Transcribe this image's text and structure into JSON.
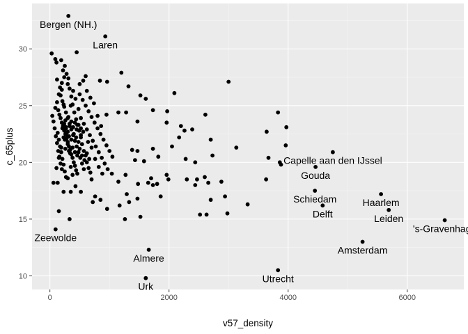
{
  "chart_data": {
    "type": "scatter",
    "title": "",
    "xlabel": "v57_density",
    "ylabel": "c_65plus",
    "xlim": [
      -300,
      6950
    ],
    "ylim": [
      8.8,
      34.0
    ],
    "xticks": [
      0,
      2000,
      4000,
      6000
    ],
    "xtick_labels": [
      "0",
      "2000",
      "4000",
      "6000"
    ],
    "yticks": [
      10,
      15,
      20,
      25,
      30
    ],
    "ytick_labels": [
      "10",
      "15",
      "20",
      "25",
      "30"
    ],
    "grid": true,
    "colors": {
      "panel": "#ebebeb",
      "grid_major": "#ffffff",
      "grid_minor": "#f5f5f5",
      "point": "#000000",
      "tick": "#333333"
    },
    "labels": [
      {
        "text": "Bergen (NH.)",
        "x": 310,
        "y": 32.9
      },
      {
        "text": "Laren",
        "x": 930,
        "y": 31.1
      },
      {
        "text": "Zeewolde",
        "x": 95,
        "y": 14.1
      },
      {
        "text": "Almere",
        "x": 1660,
        "y": 12.3
      },
      {
        "text": "Urk",
        "x": 1610,
        "y": 9.8
      },
      {
        "text": "Utrecht",
        "x": 3830,
        "y": 10.5
      },
      {
        "text": "Amsterdam",
        "x": 5250,
        "y": 13.0
      },
      {
        "text": "Capelle aan den IJssel",
        "x": 4750,
        "y": 20.9
      },
      {
        "text": "Gouda",
        "x": 4460,
        "y": 19.6
      },
      {
        "text": "Schiedam",
        "x": 4450,
        "y": 17.5
      },
      {
        "text": "Delft",
        "x": 4580,
        "y": 16.2
      },
      {
        "text": "Haarlem",
        "x": 5560,
        "y": 17.2
      },
      {
        "text": "Leiden",
        "x": 5690,
        "y": 15.8
      },
      {
        "text": "'s-Gravenhage",
        "x": 6630,
        "y": 14.9
      }
    ],
    "points": [
      [
        310,
        32.9
      ],
      [
        930,
        31.1
      ],
      [
        95,
        14.1
      ],
      [
        1660,
        12.3
      ],
      [
        1610,
        9.8
      ],
      [
        3830,
        10.5
      ],
      [
        5250,
        13.0
      ],
      [
        4750,
        20.9
      ],
      [
        4460,
        19.6
      ],
      [
        4450,
        17.5
      ],
      [
        4580,
        16.2
      ],
      [
        5560,
        17.2
      ],
      [
        5690,
        15.8
      ],
      [
        6630,
        14.9
      ],
      [
        30,
        29.6
      ],
      [
        90,
        29.1
      ],
      [
        110,
        28.8
      ],
      [
        190,
        29.0
      ],
      [
        450,
        29.7
      ],
      [
        1200,
        27.9
      ],
      [
        120,
        27.3
      ],
      [
        240,
        27.5
      ],
      [
        600,
        27.6
      ],
      [
        840,
        27.2
      ],
      [
        960,
        27.1
      ],
      [
        1320,
        26.7
      ],
      [
        300,
        26.9
      ],
      [
        500,
        26.9
      ],
      [
        3000,
        27.1
      ],
      [
        2090,
        26.1
      ],
      [
        1520,
        25.9
      ],
      [
        1610,
        25.6
      ],
      [
        1730,
        24.6
      ],
      [
        950,
        24.2
      ],
      [
        1150,
        24.4
      ],
      [
        1280,
        24.4
      ],
      [
        1970,
        24.5
      ],
      [
        2610,
        24.2
      ],
      [
        3830,
        24.4
      ],
      [
        3970,
        23.1
      ],
      [
        2200,
        23.2
      ],
      [
        2390,
        22.9
      ],
      [
        2260,
        22.8
      ],
      [
        1960,
        23.5
      ],
      [
        1470,
        23.6
      ],
      [
        3640,
        22.7
      ],
      [
        2700,
        22.0
      ],
      [
        2170,
        22.2
      ],
      [
        3960,
        21.5
      ],
      [
        3130,
        21.3
      ],
      [
        2050,
        21.4
      ],
      [
        1730,
        21.2
      ],
      [
        1470,
        21.0
      ],
      [
        1380,
        21.1
      ],
      [
        1430,
        20.2
      ],
      [
        1580,
        20.1
      ],
      [
        1820,
        20.5
      ],
      [
        2280,
        20.3
      ],
      [
        2440,
        20.0
      ],
      [
        2730,
        20.6
      ],
      [
        3670,
        20.4
      ],
      [
        3860,
        20.0
      ],
      [
        3880,
        19.8
      ],
      [
        3630,
        18.5
      ],
      [
        2600,
        18.7
      ],
      [
        2470,
        18.5
      ],
      [
        2300,
        18.5
      ],
      [
        1990,
        18.5
      ],
      [
        1960,
        18.9
      ],
      [
        2880,
        18.3
      ],
      [
        2660,
        18.2
      ],
      [
        2440,
        18.0
      ],
      [
        1800,
        18.1
      ],
      [
        1700,
        18.6
      ],
      [
        1650,
        18.2
      ],
      [
        1480,
        18.1
      ],
      [
        1270,
        18.9
      ],
      [
        1150,
        18.3
      ],
      [
        1040,
        19.0
      ],
      [
        1290,
        17.2
      ],
      [
        1470,
        16.8
      ],
      [
        1860,
        17.0
      ],
      [
        1730,
        18.0
      ],
      [
        2940,
        17.0
      ],
      [
        2700,
        16.7
      ],
      [
        3320,
        16.3
      ],
      [
        2520,
        15.4
      ],
      [
        2630,
        15.4
      ],
      [
        2980,
        15.5
      ],
      [
        1520,
        15.2
      ],
      [
        1260,
        15.0
      ],
      [
        1170,
        16.2
      ],
      [
        960,
        15.9
      ],
      [
        1330,
        16.5
      ],
      [
        850,
        16.7
      ],
      [
        760,
        17.0
      ],
      [
        720,
        16.5
      ],
      [
        520,
        17.4
      ],
      [
        330,
        15.0
      ],
      [
        150,
        15.7
      ],
      [
        60,
        18.2
      ],
      [
        130,
        18.2
      ],
      [
        300,
        18.6
      ],
      [
        430,
        17.9
      ],
      [
        230,
        17.4
      ],
      [
        350,
        17.4
      ],
      [
        40,
        24.1
      ],
      [
        60,
        23.6
      ],
      [
        80,
        23.0
      ],
      [
        100,
        22.3
      ],
      [
        120,
        21.7
      ],
      [
        140,
        21.0
      ],
      [
        160,
        20.5
      ],
      [
        180,
        19.9
      ],
      [
        200,
        19.4
      ],
      [
        90,
        24.8
      ],
      [
        120,
        25.3
      ],
      [
        150,
        26.0
      ],
      [
        170,
        26.6
      ],
      [
        200,
        27.0
      ],
      [
        220,
        28.1
      ],
      [
        250,
        28.5
      ],
      [
        280,
        27.8
      ],
      [
        310,
        27.4
      ],
      [
        330,
        26.5
      ],
      [
        360,
        25.8
      ],
      [
        380,
        25.1
      ],
      [
        410,
        24.4
      ],
      [
        440,
        23.8
      ],
      [
        460,
        23.3
      ],
      [
        490,
        22.8
      ],
      [
        520,
        22.2
      ],
      [
        540,
        21.6
      ],
      [
        570,
        21.0
      ],
      [
        600,
        20.6
      ],
      [
        620,
        20.0
      ],
      [
        650,
        19.5
      ],
      [
        680,
        19.1
      ],
      [
        700,
        18.5
      ],
      [
        140,
        24.6
      ],
      [
        160,
        24.2
      ],
      [
        180,
        23.9
      ],
      [
        200,
        23.5
      ],
      [
        220,
        23.2
      ],
      [
        240,
        22.8
      ],
      [
        260,
        22.5
      ],
      [
        280,
        22.1
      ],
      [
        300,
        21.8
      ],
      [
        320,
        21.4
      ],
      [
        340,
        21.1
      ],
      [
        360,
        20.7
      ],
      [
        380,
        20.4
      ],
      [
        400,
        20.0
      ],
      [
        420,
        19.7
      ],
      [
        440,
        19.3
      ],
      [
        460,
        19.0
      ],
      [
        130,
        22.6
      ],
      [
        150,
        22.0
      ],
      [
        170,
        21.4
      ],
      [
        190,
        20.9
      ],
      [
        210,
        20.3
      ],
      [
        230,
        19.8
      ],
      [
        250,
        19.2
      ],
      [
        270,
        18.7
      ],
      [
        180,
        25.9
      ],
      [
        210,
        25.4
      ],
      [
        240,
        24.9
      ],
      [
        270,
        24.4
      ],
      [
        300,
        23.9
      ],
      [
        330,
        23.4
      ],
      [
        360,
        22.9
      ],
      [
        390,
        22.4
      ],
      [
        420,
        21.9
      ],
      [
        450,
        21.4
      ],
      [
        480,
        20.9
      ],
      [
        510,
        20.4
      ],
      [
        540,
        19.9
      ],
      [
        570,
        19.4
      ],
      [
        200,
        26.4
      ],
      [
        230,
        25.1
      ],
      [
        260,
        23.7
      ],
      [
        290,
        22.3
      ],
      [
        320,
        21.0
      ],
      [
        350,
        19.6
      ],
      [
        380,
        18.9
      ],
      [
        500,
        26.0
      ],
      [
        550,
        25.5
      ],
      [
        600,
        25.0
      ],
      [
        650,
        24.5
      ],
      [
        700,
        24.0
      ],
      [
        750,
        23.5
      ],
      [
        800,
        23.0
      ],
      [
        850,
        22.5
      ],
      [
        900,
        22.0
      ],
      [
        950,
        21.5
      ],
      [
        1000,
        21.0
      ],
      [
        1050,
        20.5
      ],
      [
        520,
        23.9
      ],
      [
        570,
        23.4
      ],
      [
        620,
        22.9
      ],
      [
        670,
        22.4
      ],
      [
        720,
        21.9
      ],
      [
        770,
        21.4
      ],
      [
        820,
        20.9
      ],
      [
        870,
        20.4
      ],
      [
        920,
        19.9
      ],
      [
        970,
        19.4
      ],
      [
        560,
        27.2
      ],
      [
        620,
        26.3
      ],
      [
        680,
        25.7
      ],
      [
        740,
        25.2
      ],
      [
        800,
        24.1
      ],
      [
        860,
        23.2
      ],
      [
        640,
        21.8
      ],
      [
        700,
        21.3
      ],
      [
        760,
        20.3
      ],
      [
        820,
        19.6
      ],
      [
        880,
        19.0
      ],
      [
        480,
        24.7
      ],
      [
        430,
        25.6
      ],
      [
        390,
        26.3
      ],
      [
        350,
        25.0
      ],
      [
        310,
        24.0
      ],
      [
        270,
        23.1
      ],
      [
        230,
        22.2
      ],
      [
        190,
        21.3
      ],
      [
        150,
        20.4
      ],
      [
        110,
        19.5
      ],
      [
        250,
        22.0
      ],
      [
        280,
        22.6
      ],
      [
        320,
        22.3
      ],
      [
        360,
        22.0
      ],
      [
        400,
        22.5
      ],
      [
        440,
        22.2
      ],
      [
        480,
        21.8
      ],
      [
        520,
        22.4
      ],
      [
        260,
        21.2
      ],
      [
        300,
        21.6
      ],
      [
        340,
        20.8
      ],
      [
        380,
        21.3
      ],
      [
        420,
        20.9
      ],
      [
        460,
        20.6
      ],
      [
        500,
        21.2
      ],
      [
        540,
        20.6
      ],
      [
        580,
        20.2
      ],
      [
        620,
        20.8
      ],
      [
        660,
        20.3
      ],
      [
        210,
        23.0
      ],
      [
        240,
        23.4
      ],
      [
        270,
        23.0
      ],
      [
        300,
        22.7
      ],
      [
        330,
        23.2
      ],
      [
        360,
        23.6
      ],
      [
        390,
        23.1
      ],
      [
        420,
        23.5
      ],
      [
        450,
        22.9
      ],
      [
        480,
        23.3
      ],
      [
        520,
        23.0
      ],
      [
        560,
        22.7
      ]
    ]
  }
}
